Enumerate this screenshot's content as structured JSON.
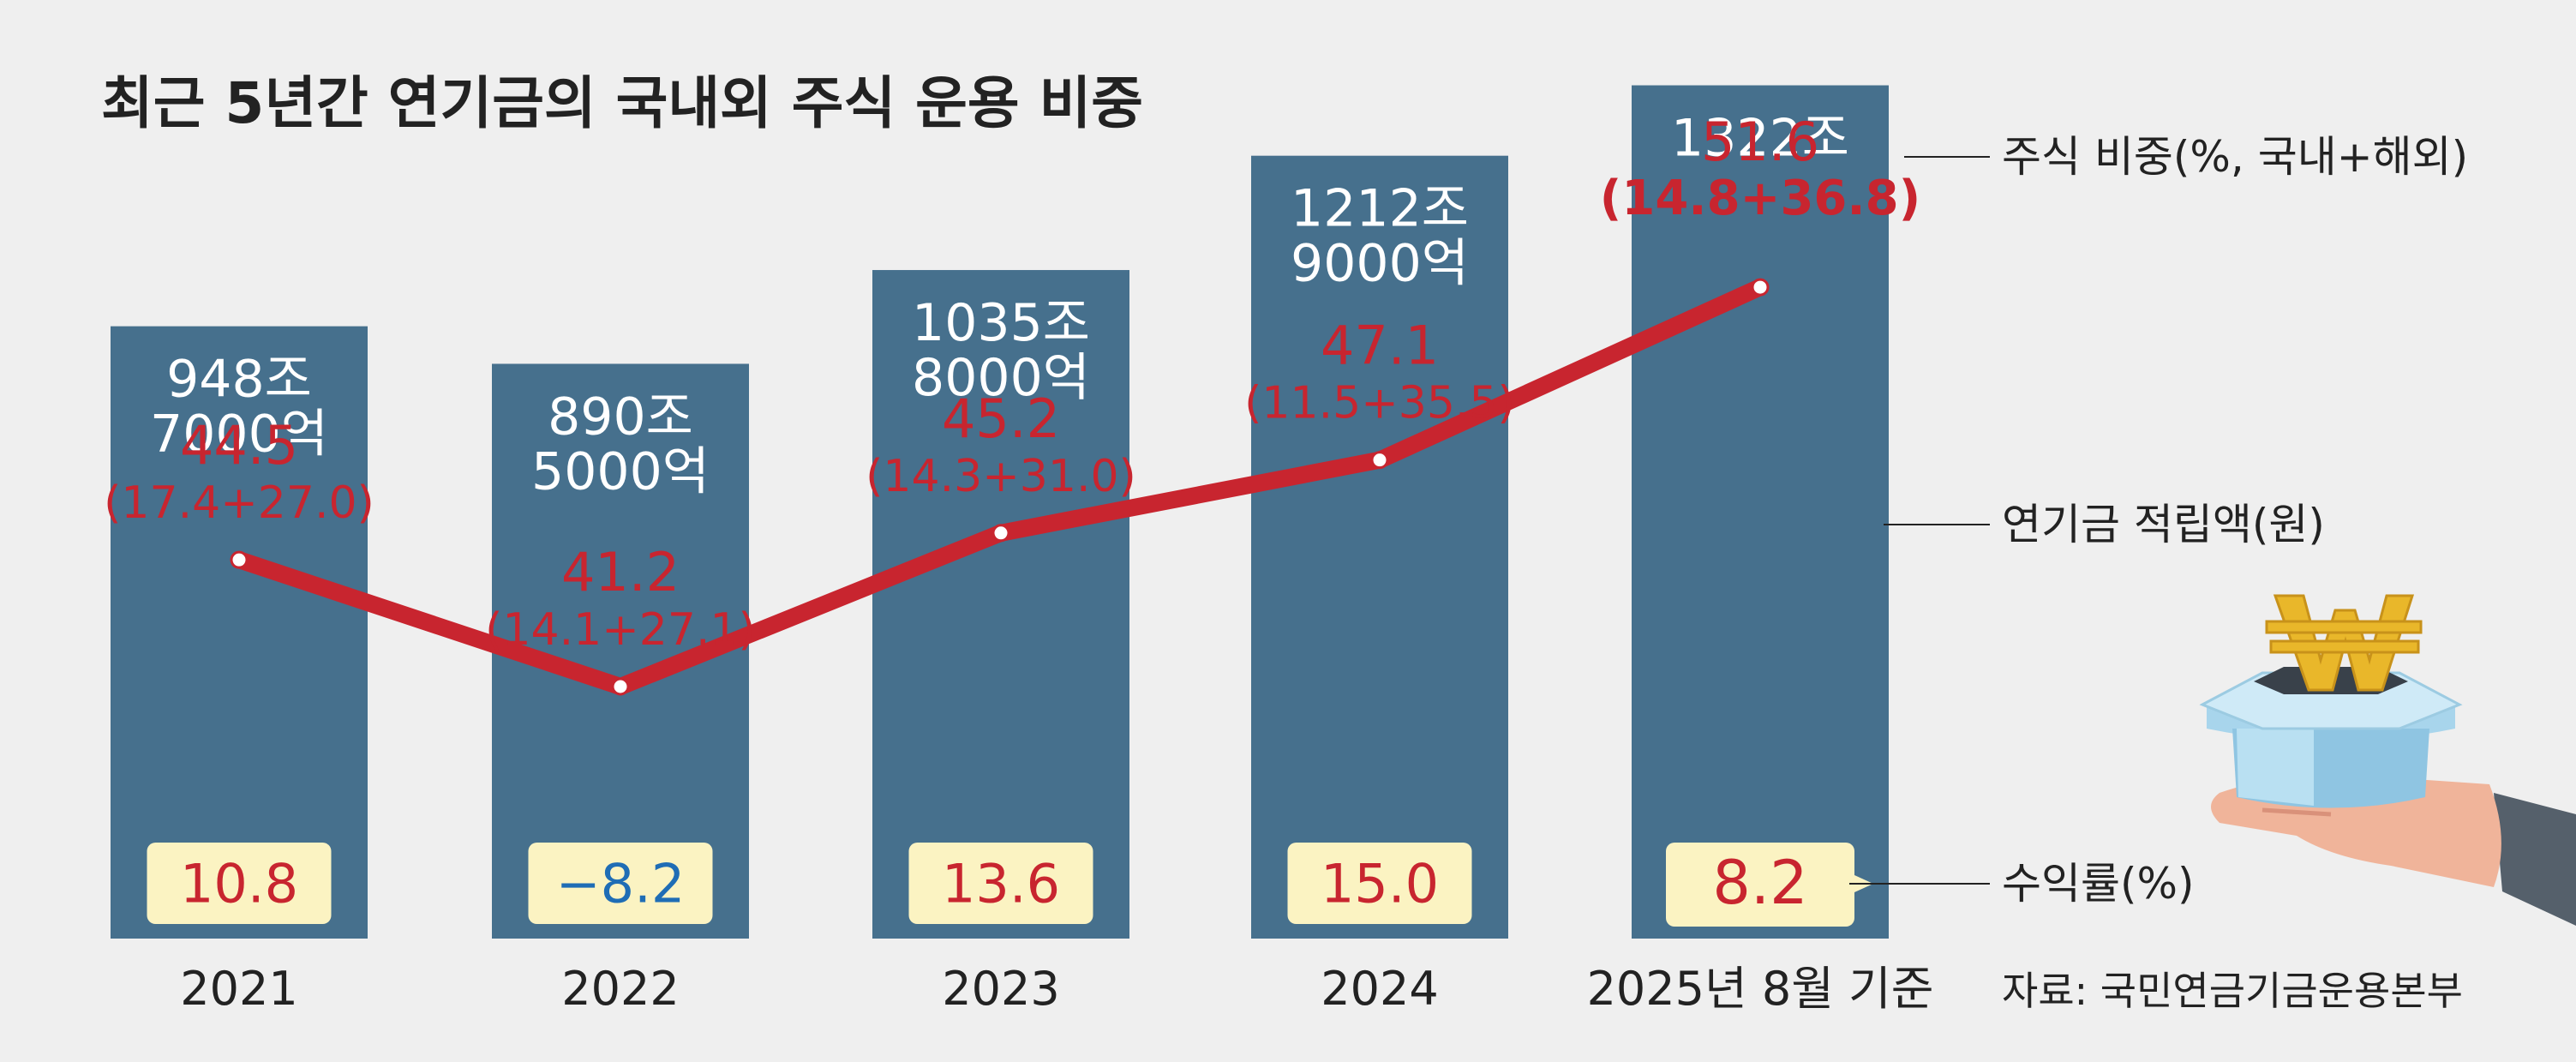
{
  "chart_data": {
    "type": "bar",
    "title": "최근 5년간 연기금의 국내외 주식 운용 비중",
    "categories": [
      "2021",
      "2022",
      "2023",
      "2024",
      "2025년 8월 기준"
    ],
    "series": [
      {
        "name": "연기금 적립액(원)",
        "type": "bar",
        "values": [
          9487000,
          8905000,
          10358000,
          12129000,
          13220000
        ],
        "unit": "억",
        "labels": [
          [
            "948조",
            "7000억"
          ],
          [
            "890조",
            "5000억"
          ],
          [
            "1035조",
            "8000억"
          ],
          [
            "1212조",
            "9000억"
          ],
          [
            "1322조"
          ]
        ]
      },
      {
        "name": "주식 비중(%, 국내+해외)",
        "type": "line",
        "values": [
          44.5,
          41.2,
          45.2,
          47.1,
          51.6
        ],
        "labels": [
          "44.5",
          "41.2",
          "45.2",
          "47.1",
          "51.6"
        ],
        "breakdown": [
          "(17.4+27.0)",
          "(14.1+27.1)",
          "(14.3+31.0)",
          "(11.5+35.5)",
          "(14.8+36.8)"
        ]
      },
      {
        "name": "수익률(%)",
        "type": "label",
        "values": [
          10.8,
          -8.2,
          13.6,
          15.0,
          8.2
        ],
        "labels": [
          "10.8",
          "−8.2",
          "13.6",
          "15.0",
          "8.2"
        ]
      }
    ],
    "source": "자료: 국민연금기금운용본부"
  },
  "colors": {
    "background": "#efefef",
    "bar": "#46708d",
    "line": "#c8252f",
    "return_box": "#fbf3c2",
    "positive_return": "#c8252f",
    "negative_return": "#1f6db5",
    "text": "#222222",
    "bar_text": "#ffffff"
  },
  "icons": [
    "hand-holding-won-icon"
  ]
}
